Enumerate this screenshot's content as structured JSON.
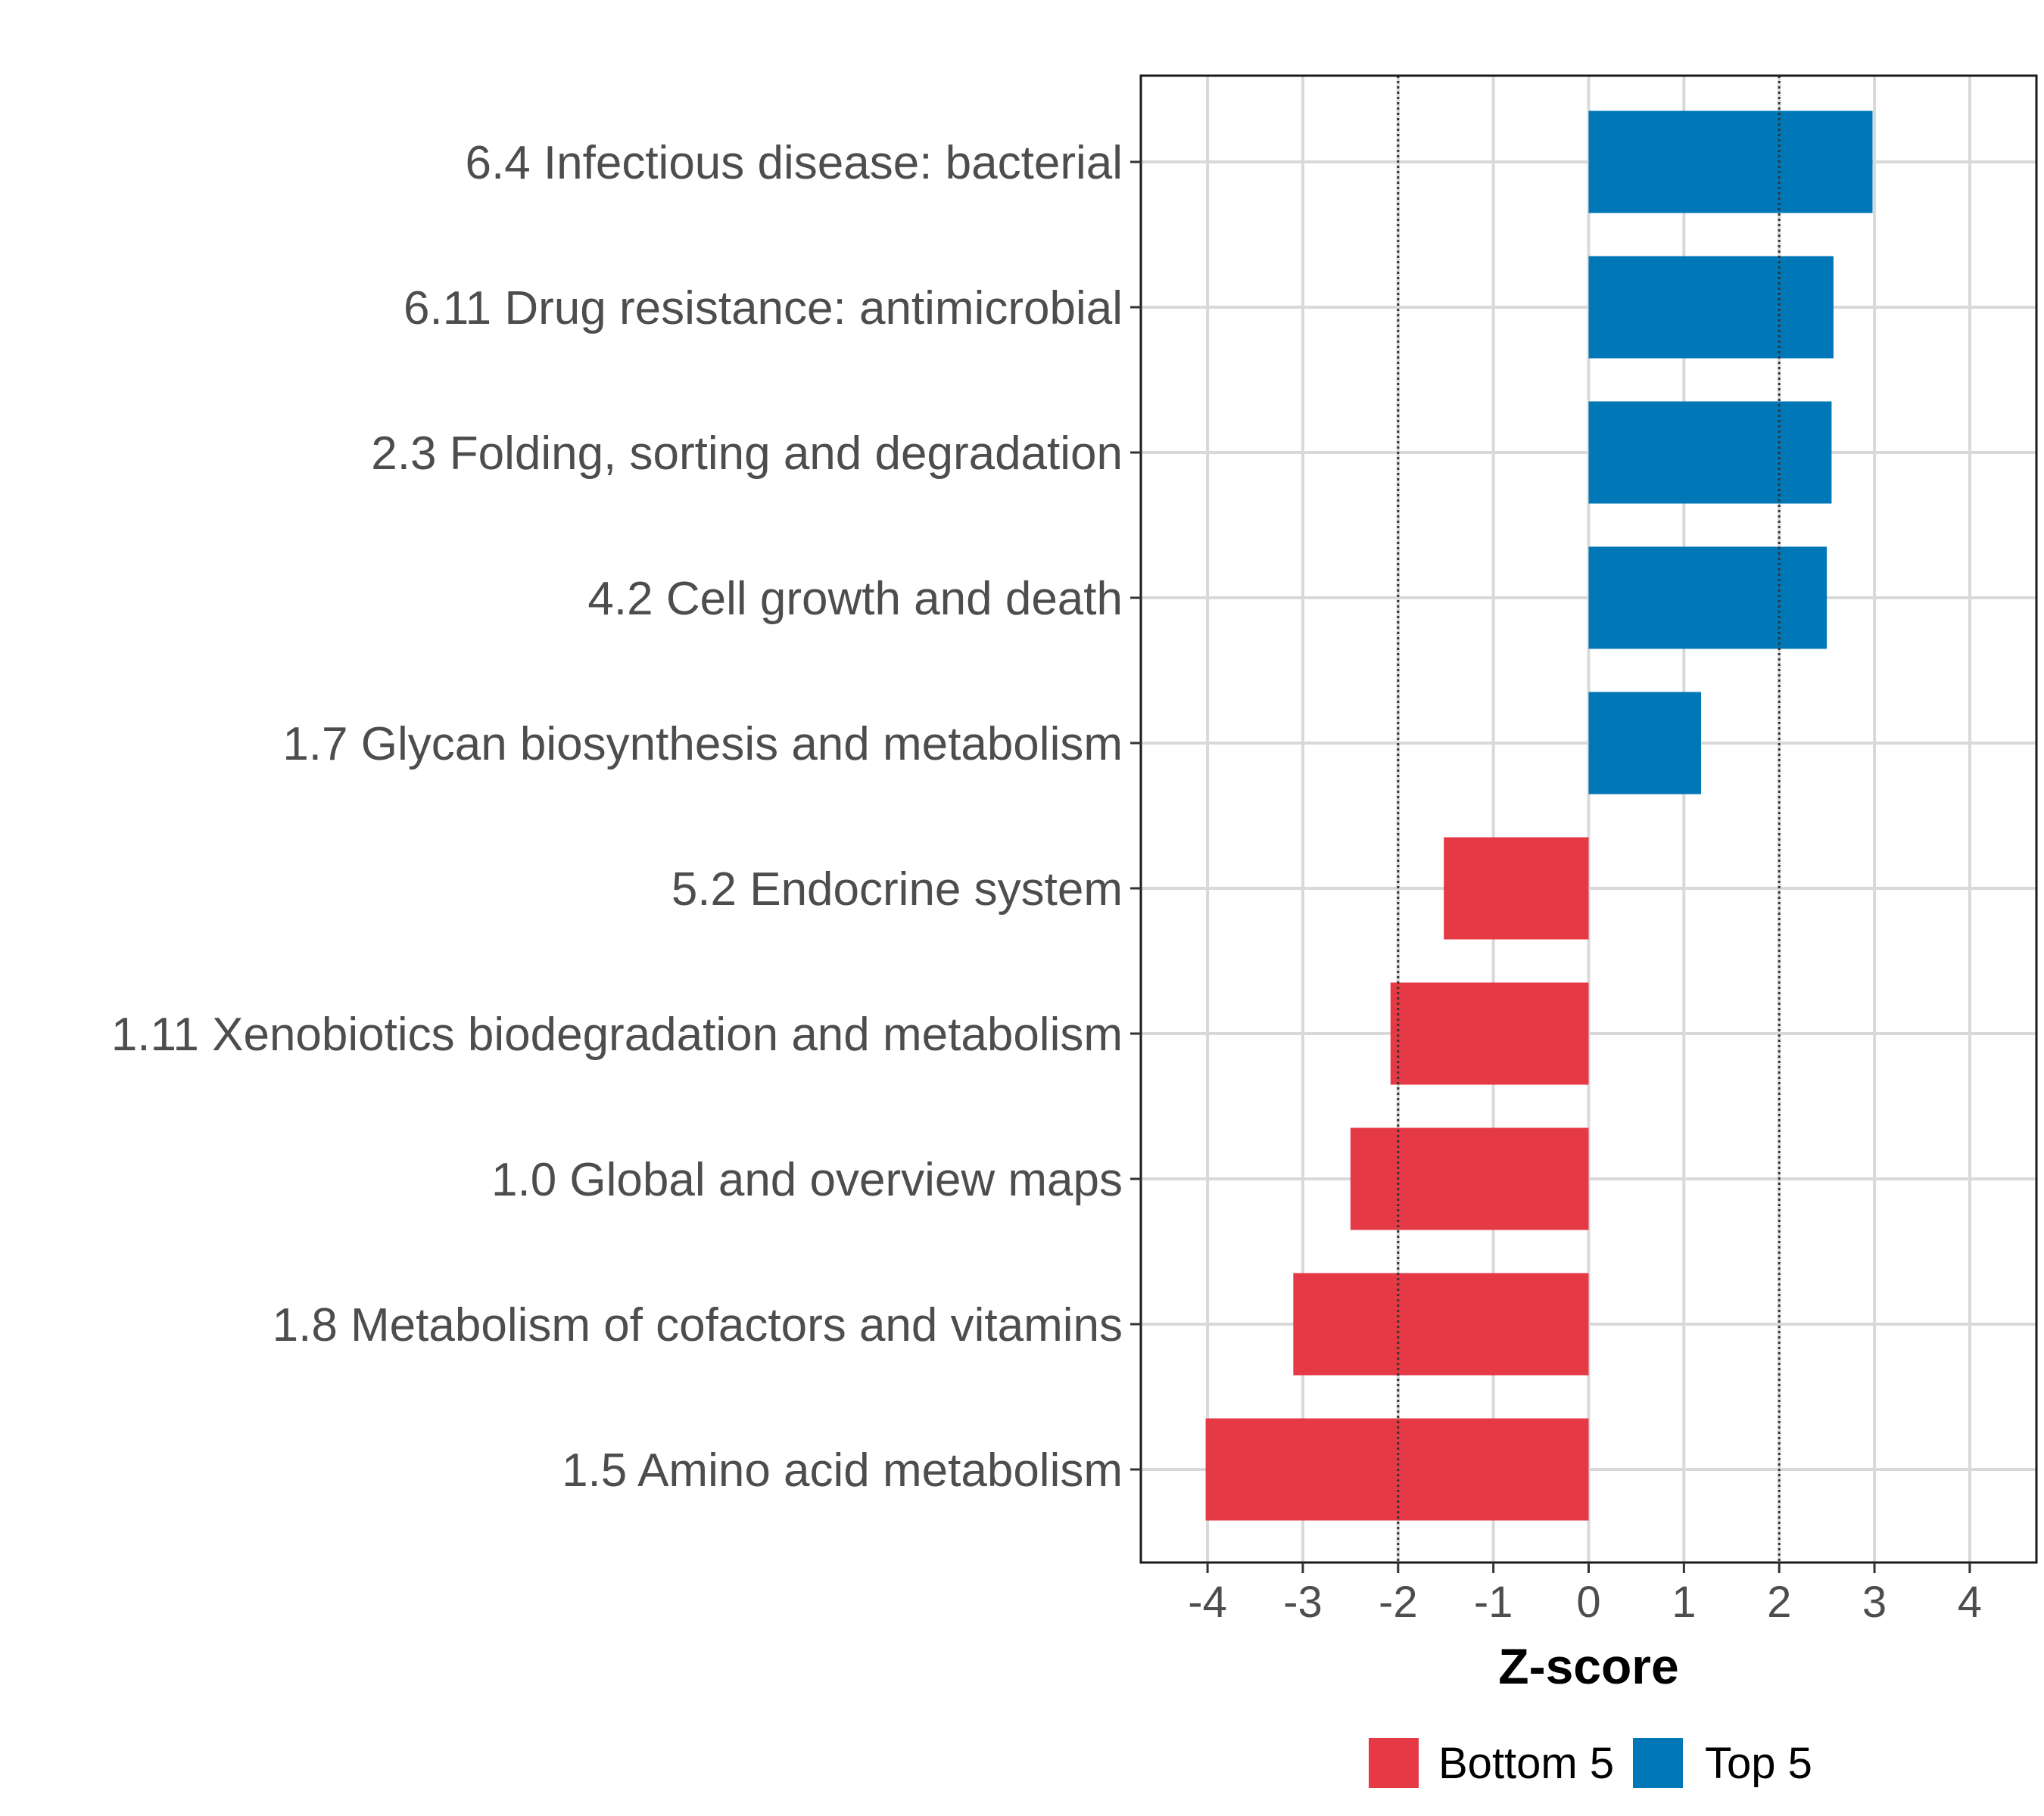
{
  "chart_data": {
    "type": "bar",
    "orientation": "horizontal",
    "xlabel": "Z-score",
    "xlim": [
      -4.7,
      4.7
    ],
    "xticks": [
      -4,
      -3,
      -2,
      -1,
      0,
      1,
      2,
      3,
      4
    ],
    "xtick_labels": [
      "-4",
      "-3",
      "-2",
      "-1",
      "0",
      "1",
      "2",
      "3",
      "4"
    ],
    "reference_lines": [
      -2,
      2
    ],
    "grid": true,
    "legend_position": "bottom",
    "categories": [
      "6.4 Infectious disease: bacterial",
      "6.11 Drug resistance: antimicrobial",
      "2.3 Folding, sorting and degradation",
      "4.2 Cell growth and death",
      "1.7 Glycan biosynthesis and metabolism",
      "5.2 Endocrine system",
      "1.11 Xenobiotics biodegradation and metabolism",
      "1.0 Global and overview maps",
      "1.8 Metabolism of cofactors and vitamins",
      "1.5 Amino acid metabolism"
    ],
    "values": [
      2.98,
      2.57,
      2.55,
      2.5,
      1.18,
      -1.52,
      -2.08,
      -2.5,
      -3.1,
      -4.02
    ],
    "groups": [
      "Top 5",
      "Top 5",
      "Top 5",
      "Top 5",
      "Top 5",
      "Bottom 5",
      "Bottom 5",
      "Bottom 5",
      "Bottom 5",
      "Bottom 5"
    ],
    "legend": [
      {
        "name": "Bottom 5",
        "color": "#e63946"
      },
      {
        "name": "Top 5",
        "color": "#0077b6"
      }
    ]
  }
}
